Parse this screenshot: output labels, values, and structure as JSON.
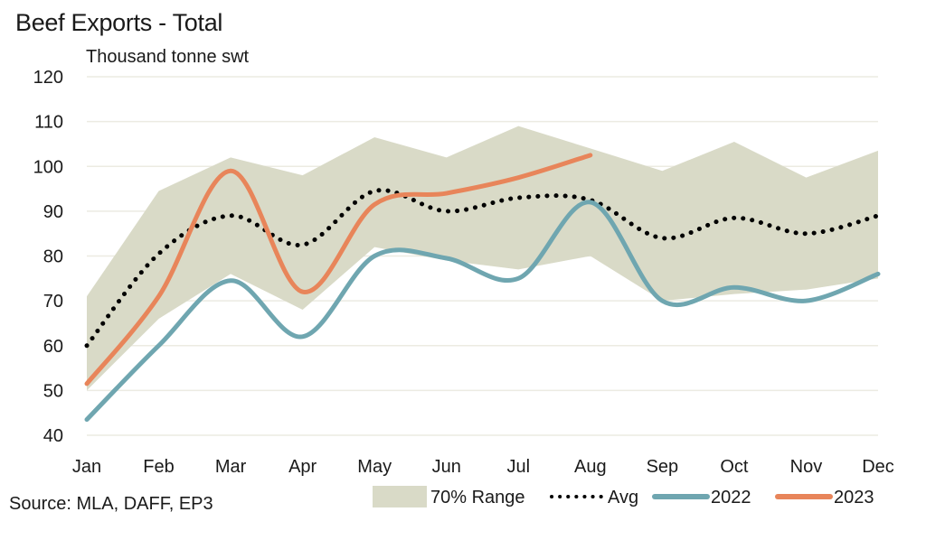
{
  "chart_data": {
    "type": "line",
    "title": "Beef Exports - Total",
    "ylabel": "Thousand tonne swt",
    "xlabel": "",
    "source": "Source: MLA, DAFF, EP3",
    "categories": [
      "Jan",
      "Feb",
      "Mar",
      "Apr",
      "May",
      "Jun",
      "Jul",
      "Aug",
      "Sep",
      "Oct",
      "Nov",
      "Dec"
    ],
    "ylim": [
      40,
      120
    ],
    "yticks": [
      40,
      50,
      60,
      70,
      80,
      90,
      100,
      110,
      120
    ],
    "grid": true,
    "legend_position": "bottom-right",
    "range": {
      "name": "70% Range",
      "color": "#d9dac7",
      "upper": [
        71,
        94.5,
        102,
        98,
        106.5,
        102,
        109,
        104,
        99,
        105.5,
        97.5,
        103.5
      ],
      "lower": [
        50,
        66,
        76,
        68,
        82,
        79,
        77,
        80,
        70,
        71.5,
        72.5,
        75
      ]
    },
    "series": [
      {
        "name": "Avg",
        "style": "dotted",
        "color": "#000000",
        "values": [
          60,
          80.5,
          89,
          82.5,
          94.5,
          90,
          93,
          92.5,
          84,
          88.5,
          85,
          89
        ]
      },
      {
        "name": "2022",
        "style": "solid",
        "color": "#6fa6b0",
        "values": [
          43.5,
          60,
          74.5,
          62,
          80,
          79.5,
          75,
          92,
          70,
          73,
          70,
          76
        ]
      },
      {
        "name": "2023",
        "style": "solid",
        "color": "#e8855a",
        "values": [
          51.5,
          71,
          99,
          72,
          91.5,
          94,
          97.5,
          102.5
        ]
      }
    ]
  }
}
